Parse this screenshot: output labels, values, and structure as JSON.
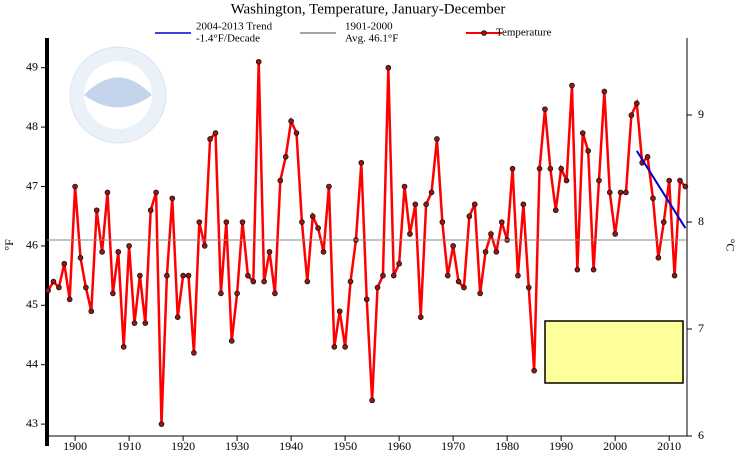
{
  "chart_data": {
    "type": "line",
    "title": "Washington, Temperature, January-December",
    "y_label": "°F",
    "y2_label": "°C",
    "x": [
      1895,
      1896,
      1897,
      1898,
      1899,
      1900,
      1901,
      1902,
      1903,
      1904,
      1905,
      1906,
      1907,
      1908,
      1909,
      1910,
      1911,
      1912,
      1913,
      1914,
      1915,
      1916,
      1917,
      1918,
      1919,
      1920,
      1921,
      1922,
      1923,
      1924,
      1925,
      1926,
      1927,
      1928,
      1929,
      1930,
      1931,
      1932,
      1933,
      1934,
      1935,
      1936,
      1937,
      1938,
      1939,
      1940,
      1941,
      1942,
      1943,
      1944,
      1945,
      1946,
      1947,
      1948,
      1949,
      1950,
      1951,
      1952,
      1953,
      1954,
      1955,
      1956,
      1957,
      1958,
      1959,
      1960,
      1961,
      1962,
      1963,
      1964,
      1965,
      1966,
      1967,
      1968,
      1969,
      1970,
      1971,
      1972,
      1973,
      1974,
      1975,
      1976,
      1977,
      1978,
      1979,
      1980,
      1981,
      1982,
      1983,
      1984,
      1985,
      1986,
      1987,
      1988,
      1989,
      1990,
      1991,
      1992,
      1993,
      1994,
      1995,
      1996,
      1997,
      1998,
      1999,
      2000,
      2001,
      2002,
      2003,
      2004,
      2005,
      2006,
      2007,
      2008,
      2009,
      2010,
      2011,
      2012,
      2013
    ],
    "series": [
      {
        "name": "Temperature",
        "color": "#ff0000",
        "marker_color": "#8b1a1a",
        "values": [
          45.25,
          45.4,
          45.3,
          45.7,
          45.1,
          47.0,
          45.8,
          45.3,
          44.9,
          46.6,
          45.9,
          46.9,
          45.2,
          45.9,
          44.3,
          46.0,
          44.7,
          45.5,
          44.7,
          46.6,
          46.9,
          43.0,
          45.5,
          46.8,
          44.8,
          45.5,
          45.5,
          44.2,
          46.4,
          46.0,
          47.8,
          47.9,
          45.2,
          46.4,
          44.4,
          45.2,
          46.4,
          45.5,
          45.4,
          49.1,
          45.4,
          45.9,
          45.2,
          47.1,
          47.5,
          48.1,
          47.9,
          46.4,
          45.4,
          46.5,
          46.3,
          45.9,
          47.0,
          44.3,
          44.9,
          44.3,
          45.4,
          46.1,
          47.4,
          45.1,
          43.4,
          45.3,
          45.5,
          49.0,
          45.5,
          45.7,
          47.0,
          46.2,
          46.7,
          44.8,
          46.7,
          46.9,
          47.8,
          46.4,
          45.5,
          46.0,
          45.4,
          45.3,
          46.5,
          46.7,
          45.2,
          45.9,
          46.2,
          45.9,
          46.4,
          46.1,
          47.3,
          45.5,
          46.7,
          45.3,
          43.9,
          47.3,
          48.3,
          47.3,
          46.6,
          47.3,
          47.1,
          48.7,
          45.6,
          47.9,
          47.6,
          45.6,
          47.1,
          48.6,
          46.9,
          46.2,
          46.9,
          46.9,
          48.2,
          48.4,
          47.4,
          47.5,
          46.8,
          45.8,
          46.4,
          47.1,
          45.5,
          47.1,
          47.0
        ]
      },
      {
        "name": "2004-2013 Trend",
        "sublabel": "-1.4°F/Decade",
        "color": "#0000cc",
        "x": [
          2004,
          2013
        ],
        "values": [
          47.6,
          46.3
        ]
      },
      {
        "name": "1901-2000",
        "sublabel": "Avg. 46.1°F",
        "color": "#888888",
        "level": 46.1
      }
    ],
    "xlim": [
      1894.8,
      2013.3
    ],
    "xticks": [
      1900,
      1910,
      1920,
      1930,
      1940,
      1950,
      1960,
      1970,
      1980,
      1990,
      2000,
      2010
    ],
    "ylim": [
      42.8,
      49.5
    ],
    "yticks": [
      43,
      44,
      45,
      46,
      47,
      48,
      49
    ],
    "y2lim": [
      6,
      9.72
    ],
    "y2ticks": [
      6,
      7,
      8,
      9
    ]
  }
}
